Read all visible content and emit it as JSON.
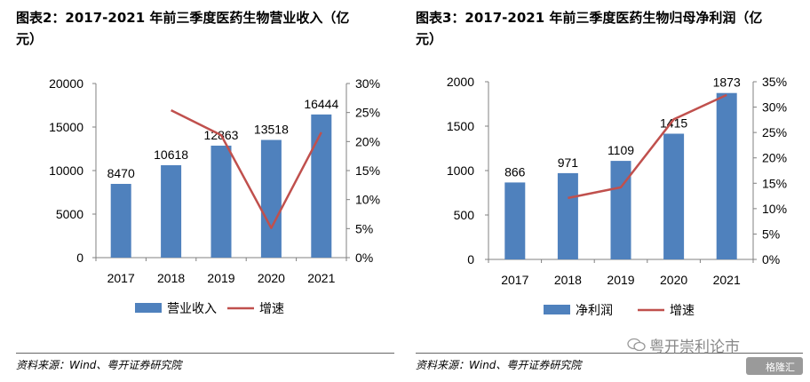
{
  "panels": [
    {
      "title_line1": "图表2：2017-2021 年前三季度医药生物营业收入（亿",
      "title_line2": "元）",
      "source": "资料来源：Wind、粤开证券研究院"
    },
    {
      "title_line1": "图表3：2017-2021 年前三季度医药生物归母净利润（亿",
      "title_line2": "元）",
      "source": "资料来源：Wind、粤开证券研究院"
    }
  ],
  "watermark": {
    "text": "粤开崇利论市",
    "logo_text": "格隆汇"
  },
  "colors": {
    "bar": "#4F81BD",
    "line": "#C0504D",
    "axis": "#808080"
  },
  "chart_data": [
    {
      "type": "bar",
      "title": "图表2：2017-2021 年前三季度医药生物营业收入（亿元）",
      "categories": [
        "2017",
        "2018",
        "2019",
        "2020",
        "2021"
      ],
      "series": [
        {
          "name": "营业收入",
          "type": "bar",
          "axis": "left",
          "values": [
            8470,
            10618,
            12863,
            13518,
            16444
          ]
        },
        {
          "name": "增速",
          "type": "line",
          "axis": "right",
          "values": [
            null,
            25.4,
            21.1,
            5.1,
            21.6
          ]
        }
      ],
      "y_left": {
        "min": 0,
        "max": 20000,
        "ticks": [
          0,
          5000,
          10000,
          15000,
          20000
        ],
        "labels": [
          "0",
          "5000",
          "10000",
          "15000",
          "20000"
        ]
      },
      "y_right": {
        "min": 0,
        "max": 30,
        "ticks": [
          0,
          5,
          10,
          15,
          20,
          25,
          30
        ],
        "labels": [
          "0%",
          "5%",
          "10%",
          "15%",
          "20%",
          "25%",
          "30%"
        ]
      },
      "data_labels": [
        "8470",
        "10618",
        "12863",
        "13518",
        "16444"
      ],
      "legend": [
        "营业收入",
        "增速"
      ],
      "legend_position": "bottom"
    },
    {
      "type": "bar",
      "title": "图表3：2017-2021 年前三季度医药生物归母净利润（亿元）",
      "categories": [
        "2017",
        "2018",
        "2019",
        "2020",
        "2021"
      ],
      "series": [
        {
          "name": "净利润",
          "type": "bar",
          "axis": "left",
          "values": [
            866,
            971,
            1109,
            1415,
            1873
          ]
        },
        {
          "name": "增速",
          "type": "line",
          "axis": "right",
          "values": [
            null,
            12.1,
            14.2,
            27.6,
            32.4
          ]
        }
      ],
      "y_left": {
        "min": 0,
        "max": 2000,
        "ticks": [
          0,
          500,
          1000,
          1500,
          2000
        ],
        "labels": [
          "0",
          "500",
          "1000",
          "1500",
          "2000"
        ]
      },
      "y_right": {
        "min": 0,
        "max": 35,
        "ticks": [
          0,
          5,
          10,
          15,
          20,
          25,
          30,
          35
        ],
        "labels": [
          "0%",
          "5%",
          "10%",
          "15%",
          "20%",
          "25%",
          "30%",
          "35%"
        ]
      },
      "data_labels": [
        "866",
        "971",
        "1109",
        "1415",
        "1873"
      ],
      "legend": [
        "净利润",
        "增速"
      ],
      "legend_position": "bottom"
    }
  ]
}
